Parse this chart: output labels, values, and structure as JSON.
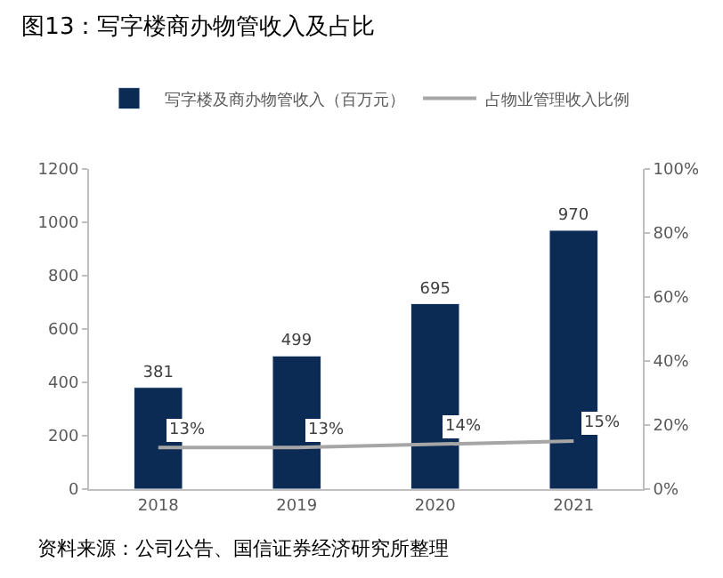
{
  "chart_data": {
    "type": "bar",
    "title": "图13：写字楼商办物管收入及占比",
    "categories": [
      "2018",
      "2019",
      "2020",
      "2021"
    ],
    "series": [
      {
        "name": "写字楼及商办物管收入（百万元）",
        "color": "#0b2a54",
        "values": [
          381,
          499,
          695,
          970
        ],
        "value_labels": [
          "381",
          "499",
          "695",
          "970"
        ]
      },
      {
        "name": "占物业管理收入比例",
        "type": "line",
        "axis": "y2",
        "color": "#a6a6a6",
        "values": [
          13,
          13,
          14,
          15
        ],
        "value_labels": [
          "13%",
          "13%",
          "14%",
          "15%"
        ],
        "marker": "none",
        "line_style": "solid"
      }
    ],
    "ylim": [
      0,
      1200
    ],
    "yticks": [
      0,
      200,
      400,
      600,
      800,
      1000,
      1200
    ],
    "y2lim": [
      0,
      100
    ],
    "y2ticks": [
      {
        "value": 0,
        "label": "0%"
      },
      {
        "value": 20,
        "label": "20%"
      },
      {
        "value": 40,
        "label": "40%"
      },
      {
        "value": 60,
        "label": "60%"
      },
      {
        "value": 80,
        "label": "80%"
      },
      {
        "value": 100,
        "label": "100%"
      }
    ],
    "legend": "top",
    "annotations": [
      "资料来源：公司公告、国信证券经济研究所整理"
    ]
  }
}
